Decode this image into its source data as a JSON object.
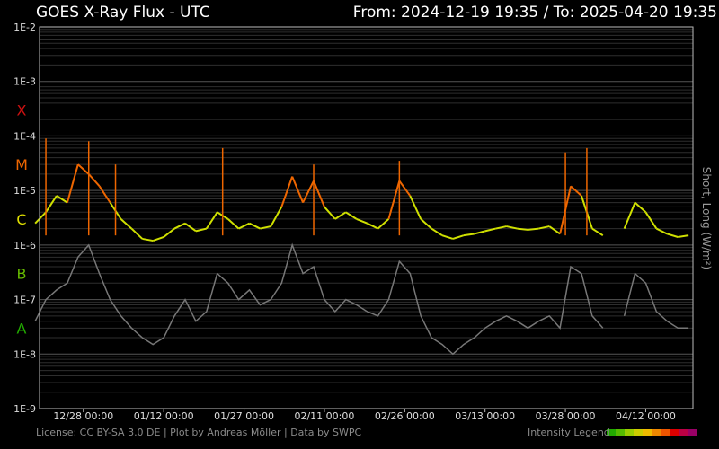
{
  "header": {
    "title": "GOES X-Ray Flux - UTC",
    "range_text": "From: 2024-12-19 19:35  /  To: 2025-04-20 19:35"
  },
  "footer": {
    "license": "License: CC BY-SA 3.0 DE | Plot by Andreas Möller | Data by SWPC",
    "legend_label": "Intensity Legend"
  },
  "legend_colors": [
    "#22aa00",
    "#55bb00",
    "#99cc00",
    "#cccc00",
    "#eebb00",
    "#ee8800",
    "#ee5500",
    "#dd0000",
    "#bb0044",
    "#990066"
  ],
  "chart_data": {
    "type": "line",
    "ylabel": "Short, Long (W/m²)",
    "y_scale": "log",
    "ylim": [
      1e-09,
      0.01
    ],
    "y_ticks": [
      {
        "label": "1E-2",
        "value": 0.01
      },
      {
        "label": "1E-3",
        "value": 0.001
      },
      {
        "label": "1E-4",
        "value": 0.0001
      },
      {
        "label": "1E-5",
        "value": 1e-05
      },
      {
        "label": "1E-6",
        "value": 1e-06
      },
      {
        "label": "1E-7",
        "value": 1e-07
      },
      {
        "label": "1E-8",
        "value": 1e-08
      },
      {
        "label": "1E-9",
        "value": 1e-09
      }
    ],
    "flare_classes": [
      {
        "label": "X",
        "value": 0.0003,
        "color": "#cc1111"
      },
      {
        "label": "M",
        "value": 3e-05,
        "color": "#ee6600"
      },
      {
        "label": "C",
        "value": 3e-06,
        "color": "#dddd00"
      },
      {
        "label": "B",
        "value": 3e-07,
        "color": "#66bb00"
      },
      {
        "label": "A",
        "value": 3e-08,
        "color": "#22aa00"
      }
    ],
    "x_range": [
      "2024-12-19 19:35",
      "2025-04-20 19:35"
    ],
    "x_ticks": [
      {
        "label": "12/28 00:00",
        "date": "2024-12-28"
      },
      {
        "label": "01/12 00:00",
        "date": "2025-01-12"
      },
      {
        "label": "01/27 00:00",
        "date": "2025-01-27"
      },
      {
        "label": "02/11 00:00",
        "date": "2025-02-11"
      },
      {
        "label": "02/26 00:00",
        "date": "2025-02-26"
      },
      {
        "label": "03/13 00:00",
        "date": "2025-03-13"
      },
      {
        "label": "03/28 00:00",
        "date": "2025-03-28"
      },
      {
        "label": "04/12 00:00",
        "date": "2025-04-12"
      }
    ],
    "series": [
      {
        "name": "Long",
        "color_scale": "flare-class",
        "dates": [
          "2024-12-19",
          "2024-12-21",
          "2024-12-23",
          "2024-12-25",
          "2024-12-27",
          "2024-12-29",
          "2024-12-31",
          "2025-01-02",
          "2025-01-04",
          "2025-01-06",
          "2025-01-08",
          "2025-01-10",
          "2025-01-12",
          "2025-01-14",
          "2025-01-16",
          "2025-01-18",
          "2025-01-20",
          "2025-01-22",
          "2025-01-24",
          "2025-01-26",
          "2025-01-28",
          "2025-01-30",
          "2025-02-01",
          "2025-02-03",
          "2025-02-05",
          "2025-02-07",
          "2025-02-09",
          "2025-02-11",
          "2025-02-13",
          "2025-02-15",
          "2025-02-17",
          "2025-02-19",
          "2025-02-21",
          "2025-02-23",
          "2025-02-25",
          "2025-02-27",
          "2025-03-01",
          "2025-03-03",
          "2025-03-05",
          "2025-03-07",
          "2025-03-09",
          "2025-03-11",
          "2025-03-13",
          "2025-03-15",
          "2025-03-17",
          "2025-03-19",
          "2025-03-21",
          "2025-03-23",
          "2025-03-25",
          "2025-03-27",
          "2025-03-29",
          "2025-03-31",
          "2025-04-02",
          "2025-04-04",
          "2025-04-06",
          "2025-04-08",
          "2025-04-10",
          "2025-04-12",
          "2025-04-14",
          "2025-04-16",
          "2025-04-18",
          "2025-04-20"
        ],
        "values": [
          2.5e-06,
          4e-06,
          8e-06,
          6e-06,
          3e-05,
          2e-05,
          1.2e-05,
          6e-06,
          3e-06,
          2e-06,
          1.3e-06,
          1.2e-06,
          1.4e-06,
          2e-06,
          2.5e-06,
          1.8e-06,
          2e-06,
          4e-06,
          3e-06,
          2e-06,
          2.5e-06,
          2e-06,
          2.2e-06,
          5e-06,
          1.8e-05,
          6e-06,
          1.5e-05,
          5e-06,
          3e-06,
          4e-06,
          3e-06,
          2.5e-06,
          2e-06,
          3e-06,
          1.5e-05,
          8e-06,
          3e-06,
          2e-06,
          1.5e-06,
          1.3e-06,
          1.5e-06,
          1.6e-06,
          1.8e-06,
          2e-06,
          2.2e-06,
          2e-06,
          1.9e-06,
          2e-06,
          2.2e-06,
          1.6e-06,
          1.2e-05,
          8e-06,
          2e-06,
          1.5e-06,
          null,
          2e-06,
          6e-06,
          4e-06,
          2e-06,
          1.6e-06,
          1.4e-06,
          1.5e-06
        ],
        "peaks": [
          {
            "date": "2024-12-21",
            "value": 9e-05
          },
          {
            "date": "2024-12-29",
            "value": 8e-05
          },
          {
            "date": "2025-01-03",
            "value": 3e-05
          },
          {
            "date": "2025-01-23",
            "value": 6e-05
          },
          {
            "date": "2025-02-09",
            "value": 3e-05
          },
          {
            "date": "2025-02-25",
            "value": 3.5e-05
          },
          {
            "date": "2025-03-28",
            "value": 5e-05
          },
          {
            "date": "2025-04-01",
            "value": 6e-05
          }
        ]
      },
      {
        "name": "Short",
        "color": "#777777",
        "dates": [
          "2024-12-19",
          "2024-12-21",
          "2024-12-23",
          "2024-12-25",
          "2024-12-27",
          "2024-12-29",
          "2024-12-31",
          "2025-01-02",
          "2025-01-04",
          "2025-01-06",
          "2025-01-08",
          "2025-01-10",
          "2025-01-12",
          "2025-01-14",
          "2025-01-16",
          "2025-01-18",
          "2025-01-20",
          "2025-01-22",
          "2025-01-24",
          "2025-01-26",
          "2025-01-28",
          "2025-01-30",
          "2025-02-01",
          "2025-02-03",
          "2025-02-05",
          "2025-02-07",
          "2025-02-09",
          "2025-02-11",
          "2025-02-13",
          "2025-02-15",
          "2025-02-17",
          "2025-02-19",
          "2025-02-21",
          "2025-02-23",
          "2025-02-25",
          "2025-02-27",
          "2025-03-01",
          "2025-03-03",
          "2025-03-05",
          "2025-03-07",
          "2025-03-09",
          "2025-03-11",
          "2025-03-13",
          "2025-03-15",
          "2025-03-17",
          "2025-03-19",
          "2025-03-21",
          "2025-03-23",
          "2025-03-25",
          "2025-03-27",
          "2025-03-29",
          "2025-03-31",
          "2025-04-02",
          "2025-04-04",
          "2025-04-06",
          "2025-04-08",
          "2025-04-10",
          "2025-04-12",
          "2025-04-14",
          "2025-04-16",
          "2025-04-18",
          "2025-04-20"
        ],
        "values": [
          4e-08,
          1e-07,
          1.5e-07,
          2e-07,
          6e-07,
          1e-06,
          3e-07,
          1e-07,
          5e-08,
          3e-08,
          2e-08,
          1.5e-08,
          2e-08,
          5e-08,
          1e-07,
          4e-08,
          6e-08,
          3e-07,
          2e-07,
          1e-07,
          1.5e-07,
          8e-08,
          1e-07,
          2e-07,
          1e-06,
          3e-07,
          4e-07,
          1e-07,
          6e-08,
          1e-07,
          8e-08,
          6e-08,
          5e-08,
          1e-07,
          5e-07,
          3e-07,
          5e-08,
          2e-08,
          1.5e-08,
          1e-08,
          1.5e-08,
          2e-08,
          3e-08,
          4e-08,
          5e-08,
          4e-08,
          3e-08,
          4e-08,
          5e-08,
          3e-08,
          4e-07,
          3e-07,
          5e-08,
          3e-08,
          null,
          5e-08,
          3e-07,
          2e-07,
          6e-08,
          4e-08,
          3e-08,
          3e-08
        ]
      }
    ]
  }
}
